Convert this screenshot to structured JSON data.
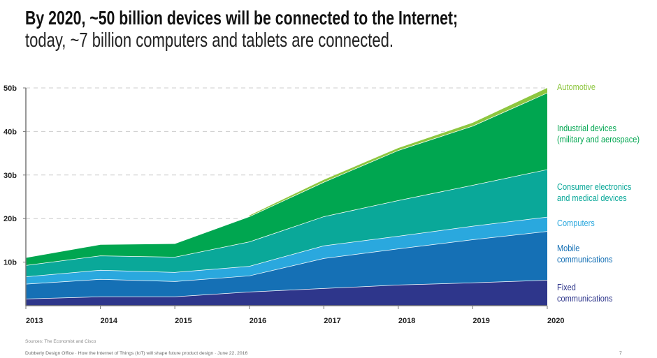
{
  "title": "By 2020, ~50 billion devices will be connected to the Internet;",
  "subtitle": "today, ~7 billion computers and tablets are connected.",
  "chart_data": {
    "type": "area",
    "stacked": true,
    "x": [
      "2013",
      "2014",
      "2015",
      "2016",
      "2017",
      "2018",
      "2019",
      "2020"
    ],
    "ylim": [
      0,
      50
    ],
    "yticks": [
      10,
      20,
      30,
      40,
      50
    ],
    "ytick_labels": [
      "10b",
      "20b",
      "30b",
      "40b",
      "50b"
    ],
    "grid": "dashed horizontal",
    "legend": "right, inline labels",
    "series": [
      {
        "name": "Fixed communications",
        "color": "#2e368b",
        "values": [
          1.6,
          2.1,
          2.1,
          3.2,
          4.0,
          4.8,
          5.3,
          5.9
        ]
      },
      {
        "name": "Mobile communications",
        "color": "#1570b5",
        "values": [
          3.4,
          4.0,
          3.5,
          3.7,
          6.9,
          8.3,
          9.9,
          11.2
        ]
      },
      {
        "name": "Computers",
        "color": "#2aa8de",
        "values": [
          1.7,
          2.1,
          2.1,
          2.2,
          2.9,
          2.9,
          3.1,
          3.3
        ]
      },
      {
        "name": "Consumer electronics and medical devices",
        "color": "#0aa899",
        "values": [
          2.6,
          3.3,
          3.5,
          5.6,
          6.7,
          8.2,
          9.4,
          10.9
        ]
      },
      {
        "name": "Industrial devices (military and aerospace)",
        "color": "#00a650",
        "values": [
          1.8,
          2.6,
          3.1,
          5.8,
          7.9,
          11.5,
          13.6,
          17.6
        ]
      },
      {
        "name": "Automotive",
        "color": "#8dc63f",
        "values": [
          0,
          0,
          0,
          0.2,
          0.5,
          0.5,
          0.7,
          1.1
        ]
      }
    ],
    "labels": [
      {
        "lines": [
          "Automotive"
        ],
        "color": "#8dc63f"
      },
      {
        "lines": [
          "Industrial devices",
          "(military and aerospace)"
        ],
        "color": "#00a650"
      },
      {
        "lines": [
          "Consumer electronics",
          "and medical devices"
        ],
        "color": "#0aa899"
      },
      {
        "lines": [
          "Computers"
        ],
        "color": "#2aa8de"
      },
      {
        "lines": [
          "Mobile",
          "communications"
        ],
        "color": "#1570b5"
      },
      {
        "lines": [
          "Fixed",
          "communications"
        ],
        "color": "#2e368b"
      }
    ]
  },
  "source": "Sources: The Economist and Cisco",
  "footer": "Dubberly Design Office  ·  How the Internet of Things (IoT) will shape future product design  ·  June 22, 2016",
  "page_number": "7"
}
